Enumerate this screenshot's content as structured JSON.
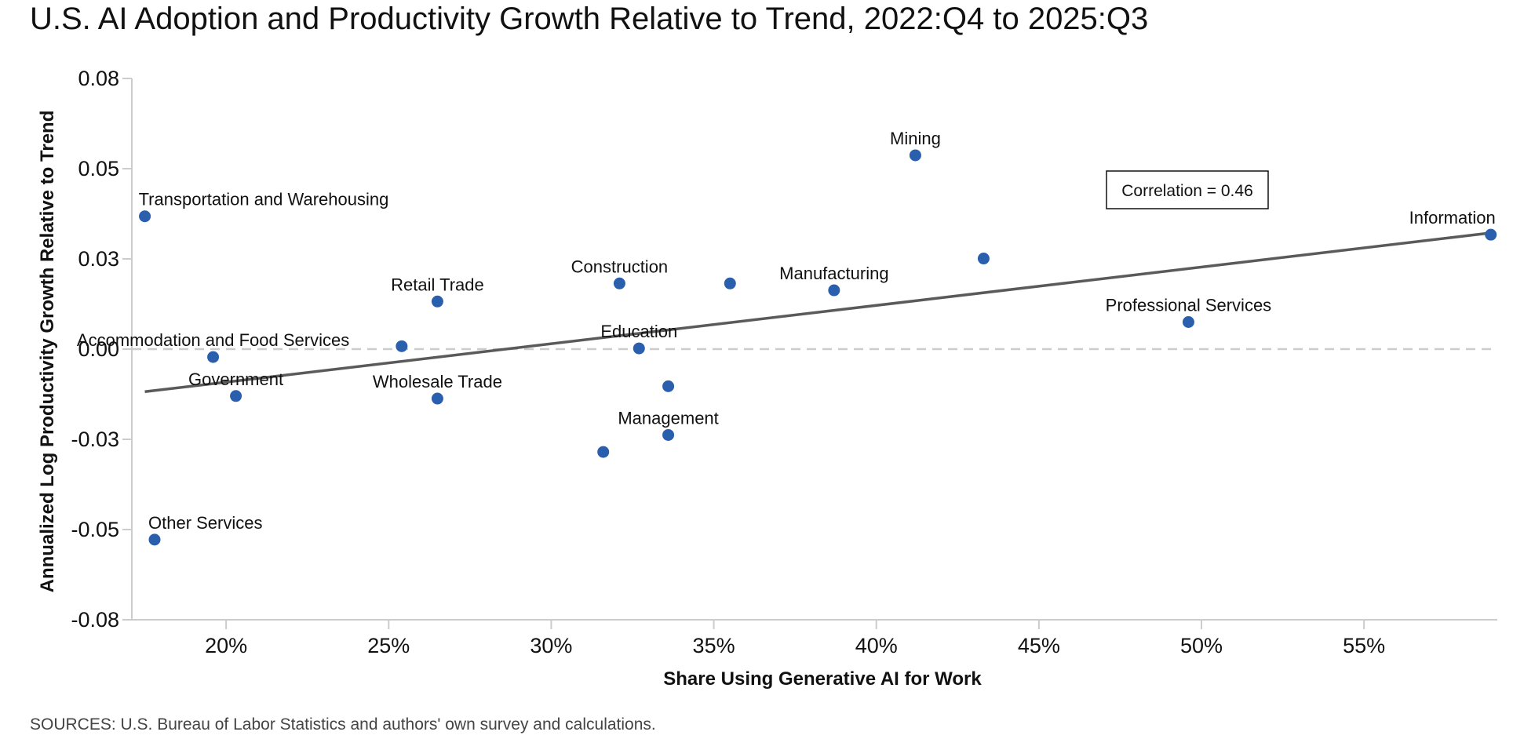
{
  "title": "U.S. AI Adoption and Productivity Growth Relative to Trend, 2022:Q4 to 2025:Q3",
  "source": "SOURCES: U.S. Bureau of Labor Statistics and authors' own survey and calculations.",
  "colors": {
    "point": "#2a5fad",
    "trend_line": "#5a5a5a",
    "zero_line": "#cccccc",
    "axis": "#cccccc"
  },
  "chart_data": {
    "type": "scatter",
    "xlabel": "Share Using Generative AI for Work",
    "ylabel": "Annualized Log Productivity Growth Relative to Trend",
    "xlim": [
      17.1,
      59.1
    ],
    "ylim": [
      -0.075,
      0.075
    ],
    "x_ticks": [
      20,
      25,
      30,
      35,
      40,
      45,
      50,
      55
    ],
    "x_tick_labels": [
      "20%",
      "25%",
      "30%",
      "35%",
      "40%",
      "45%",
      "50%",
      "55%"
    ],
    "y_ticks": [
      0.075,
      0.05,
      0.025,
      0.0,
      -0.025,
      -0.05,
      -0.075
    ],
    "y_tick_labels": [
      "0.08",
      "0.05",
      "0.03",
      "0.00",
      "-0.03",
      "-0.05",
      "-0.08"
    ],
    "zero_line": true,
    "annotation": "Correlation = 0.46",
    "trend_line": {
      "x": [
        17.5,
        58.9
      ],
      "y": [
        -0.0118,
        0.0322
      ]
    },
    "points": [
      {
        "label": "Transportation and Warehousing",
        "x": 17.5,
        "y": 0.0368
      },
      {
        "label": "Other Services",
        "x": 17.8,
        "y": -0.0528
      },
      {
        "label": "Accommodation and Food Services",
        "x": 19.6,
        "y": -0.0022
      },
      {
        "label": "Government",
        "x": 20.3,
        "y": -0.013
      },
      {
        "label": "",
        "x": 25.4,
        "y": 0.0008
      },
      {
        "label": "Retail Trade",
        "x": 26.5,
        "y": 0.0132
      },
      {
        "label": "Wholesale Trade",
        "x": 26.5,
        "y": -0.0137
      },
      {
        "label": "",
        "x": 31.6,
        "y": -0.0285
      },
      {
        "label": "Construction",
        "x": 32.1,
        "y": 0.0182
      },
      {
        "label": "Education",
        "x": 32.7,
        "y": 0.0002
      },
      {
        "label": "",
        "x": 33.6,
        "y": -0.0103
      },
      {
        "label": "Management",
        "x": 33.6,
        "y": -0.0238
      },
      {
        "label": "",
        "x": 35.5,
        "y": 0.0182
      },
      {
        "label": "Manufacturing",
        "x": 38.7,
        "y": 0.0163
      },
      {
        "label": "Mining",
        "x": 41.2,
        "y": 0.0537
      },
      {
        "label": "",
        "x": 43.3,
        "y": 0.0251
      },
      {
        "label": "Professional Services",
        "x": 49.6,
        "y": 0.0075
      },
      {
        "label": "Information",
        "x": 58.9,
        "y": 0.0317
      }
    ]
  }
}
